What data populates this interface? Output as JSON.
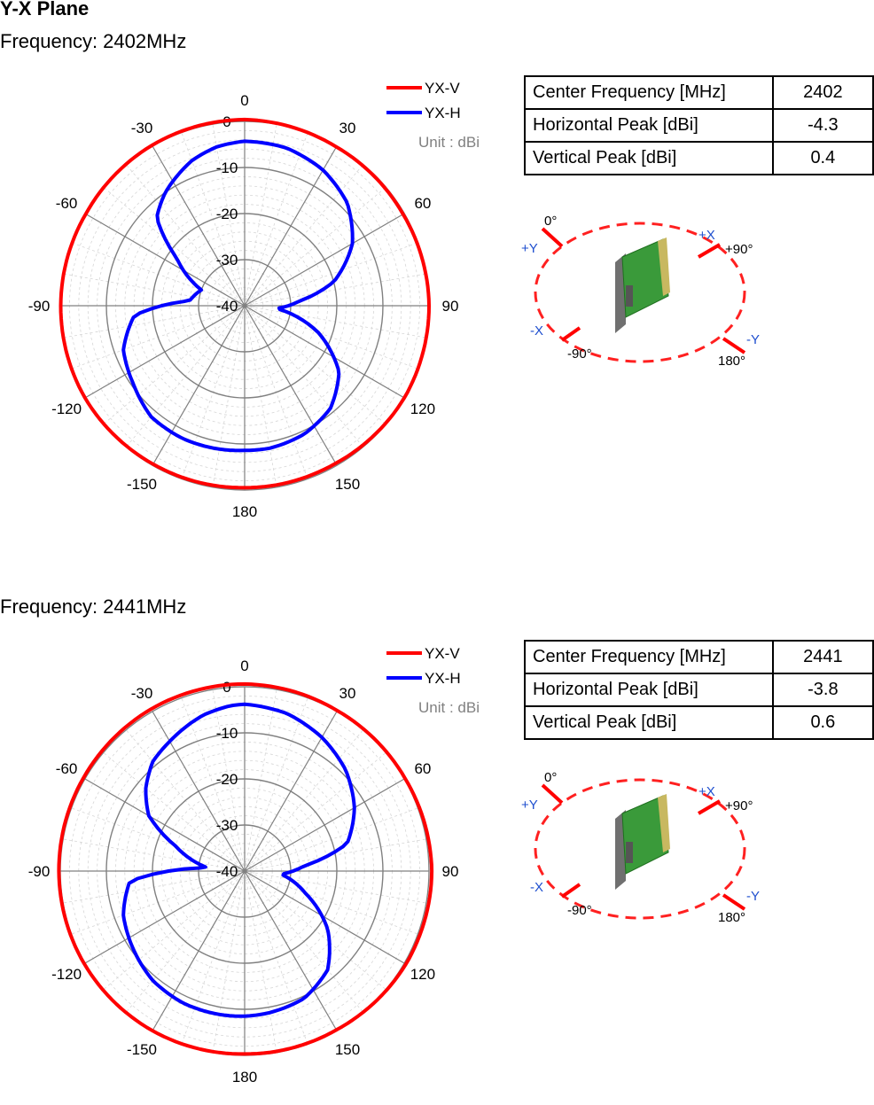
{
  "plane_title": "Y-X Plane",
  "colors": {
    "vertical": "#ff0000",
    "horizontal": "#0000ff",
    "grid": "#808080",
    "unit_text": "#808080",
    "axis_blue": "#1f4fcf"
  },
  "chart_data": [
    {
      "type": "polar",
      "frequency_label": "Frequency: 2402MHz",
      "unit_label": "Unit : dBi",
      "radial_ticks": [
        "0",
        "-10",
        "-20",
        "-30",
        "-40"
      ],
      "rlim": [
        -40,
        0
      ],
      "angle_ticks": [
        "0",
        "30",
        "60",
        "90",
        "120",
        "150",
        "180",
        "-150",
        "-120",
        "-90",
        "-60",
        "-30"
      ],
      "legend_position": "top-right",
      "series": [
        {
          "name": "YX-V",
          "color": "#ff0000",
          "angles": [
            0,
            30,
            60,
            90,
            120,
            150,
            180,
            -150,
            -120,
            -90,
            -60,
            -30
          ],
          "values": [
            0.4,
            -0.2,
            -0.3,
            0,
            0,
            -0.5,
            -0.5,
            -0.3,
            0,
            -0.1,
            -0.2,
            0.2
          ]
        },
        {
          "name": "YX-H",
          "color": "#0000ff",
          "angles": [
            0,
            15,
            30,
            45,
            60,
            75,
            85,
            95,
            110,
            125,
            140,
            155,
            170,
            180,
            -170,
            -155,
            -140,
            -125,
            -110,
            -95,
            -85,
            -70,
            -55,
            -45,
            -35,
            -20,
            -10
          ],
          "values": [
            -4.3,
            -4.6,
            -6,
            -8.5,
            -13,
            -20,
            -28,
            -33,
            -23,
            -15,
            -11,
            -9.3,
            -8.6,
            -8.6,
            -8.4,
            -8.2,
            -8.5,
            -10.5,
            -12,
            -16,
            -28,
            -30,
            -22,
            -13,
            -10,
            -6.5,
            -5
          ]
        }
      ],
      "table": [
        {
          "label": "Center Frequency [MHz]",
          "value": "2402"
        },
        {
          "label": "Horizontal Peak [dBi]",
          "value": "-4.3"
        },
        {
          "label": "Vertical Peak [dBi]",
          "value": "0.4"
        }
      ]
    },
    {
      "type": "polar",
      "frequency_label": "Frequency: 2441MHz",
      "unit_label": "Unit : dBi",
      "radial_ticks": [
        "0",
        "-10",
        "-20",
        "-30",
        "-40"
      ],
      "rlim": [
        -40,
        0
      ],
      "angle_ticks": [
        "0",
        "30",
        "60",
        "90",
        "120",
        "150",
        "180",
        "-150",
        "-120",
        "-90",
        "-60",
        "-30"
      ],
      "legend_position": "top-right",
      "series": [
        {
          "name": "YX-V",
          "color": "#ff0000",
          "angles": [
            0,
            30,
            60,
            90,
            120,
            150,
            180,
            -150,
            -120,
            -90,
            -60,
            -30
          ],
          "values": [
            0.6,
            0.2,
            0.2,
            0.6,
            0.4,
            -0.2,
            -0.3,
            0,
            0.2,
            0.3,
            0.4,
            0.6
          ]
        },
        {
          "name": "YX-H",
          "color": "#0000ff",
          "angles": [
            0,
            15,
            30,
            45,
            60,
            75,
            85,
            95,
            110,
            125,
            140,
            155,
            170,
            180,
            -170,
            -155,
            -140,
            -125,
            -110,
            -95,
            -85,
            -70,
            -60,
            -50,
            -40,
            -30,
            -15,
            -5
          ],
          "values": [
            -3.8,
            -4.6,
            -6.5,
            -9,
            -12.5,
            -17,
            -27,
            -32,
            -26,
            -18,
            -12,
            -9.5,
            -8.8,
            -8.5,
            -8.4,
            -8.4,
            -9,
            -10.5,
            -12,
            -15,
            -32,
            -24,
            -16,
            -12,
            -9,
            -7.5,
            -5,
            -4
          ]
        }
      ],
      "table": [
        {
          "label": "Center Frequency [MHz]",
          "value": "2441"
        },
        {
          "label": "Horizontal Peak [dBi]",
          "value": "-3.8"
        },
        {
          "label": "Vertical Peak [dBi]",
          "value": "0.6"
        }
      ]
    }
  ],
  "orientation": {
    "angle_labels": {
      "zero": "0°",
      "plus90": "+90°",
      "minus90": "-90°",
      "one80": "180°"
    },
    "axis_labels": {
      "plus_y": "+Y",
      "plus_x": "+X",
      "minus_x": "-X",
      "minus_y": "-Y"
    }
  }
}
